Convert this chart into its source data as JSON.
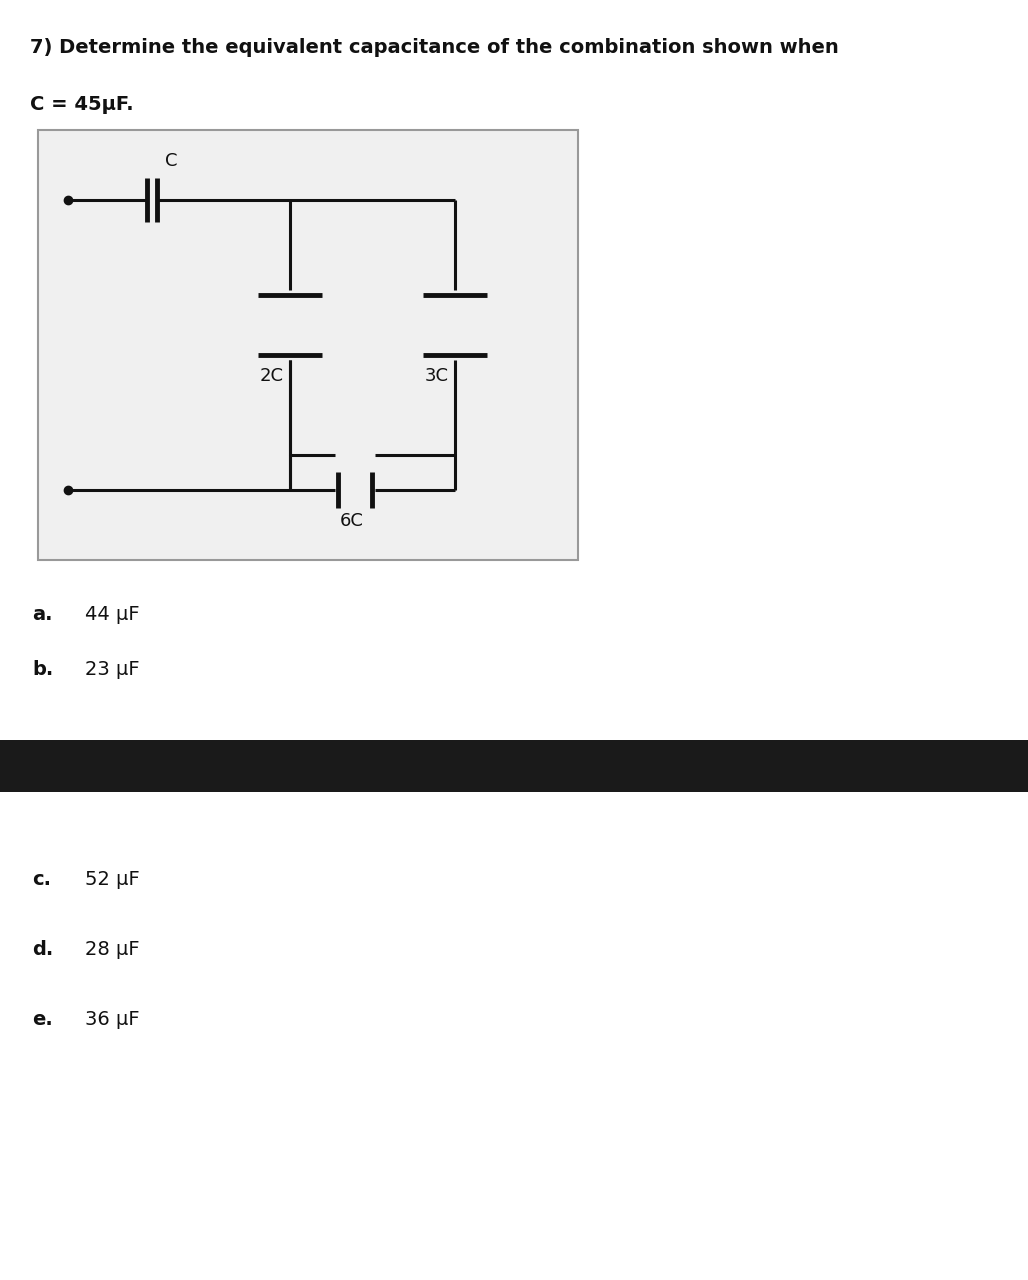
{
  "title_line1": "7) Determine the equivalent capacitance of the combination shown when",
  "given": "C = 45μF.",
  "options": [
    {
      "label": "a.",
      "text": "44 μF"
    },
    {
      "label": "b.",
      "text": "23 μF"
    },
    {
      "label": "c.",
      "text": "52 μF"
    },
    {
      "label": "d.",
      "text": "28 μF"
    },
    {
      "label": "e.",
      "text": "36 μF"
    }
  ],
  "bg_color": "#ffffff",
  "text_color": "#111111",
  "black_bar_color": "#1a1a1a",
  "circuit_bg": "#f0f0f0",
  "circuit_border": "#999999",
  "title_fontsize": 14,
  "option_fontsize": 14,
  "given_fontsize": 14
}
